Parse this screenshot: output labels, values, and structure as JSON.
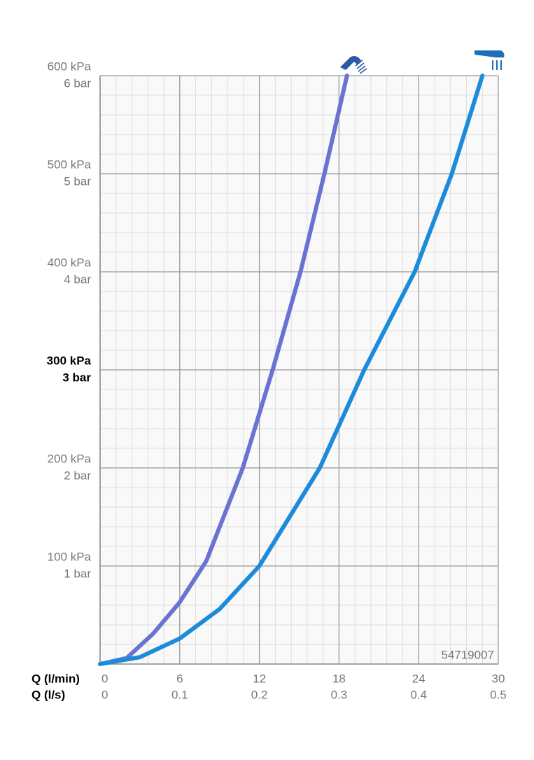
{
  "chart_data": {
    "type": "line",
    "x_label": "Q (l/min)",
    "x2_label": "Q (l/s)",
    "xlim": [
      0,
      30
    ],
    "xticks": [
      0,
      6,
      12,
      18,
      24,
      30
    ],
    "x2lim": [
      0,
      0.5
    ],
    "x2ticks": [
      0,
      0.1,
      0.2,
      0.3,
      0.4,
      0.5
    ],
    "ylim": [
      0,
      600
    ],
    "yticks": [
      {
        "value": 100,
        "label": "100 kPa"
      },
      {
        "value": 200,
        "label": "200 kPa"
      },
      {
        "value": 300,
        "label": "300 kPa"
      },
      {
        "value": 400,
        "label": "400 kPa"
      },
      {
        "value": 500,
        "label": "500 kPa"
      },
      {
        "value": 600,
        "label": "600 kPa"
      }
    ],
    "ytick_sublabels": [
      "1 bar",
      "2 bar",
      "3 bar",
      "4 bar",
      "5 bar",
      "6 bar"
    ],
    "highlight_ytick": 300,
    "grid": true,
    "minor_divisions": 5,
    "annotation": "54719007",
    "series": [
      {
        "color": "#6b73d2",
        "x": [
          0,
          2,
          4,
          6,
          8,
          10.75,
          13,
          15.1,
          16.9,
          18.6
        ],
        "values": [
          0,
          6,
          31,
          63,
          105,
          200,
          300,
          400,
          500,
          600
        ]
      },
      {
        "color": "#1c8bda",
        "x": [
          0,
          3,
          6,
          9,
          12,
          16.55,
          19.9,
          23.7,
          26.5,
          28.8
        ],
        "values": [
          0,
          7,
          26,
          56,
          100,
          200,
          300,
          400,
          500,
          600
        ]
      }
    ]
  }
}
